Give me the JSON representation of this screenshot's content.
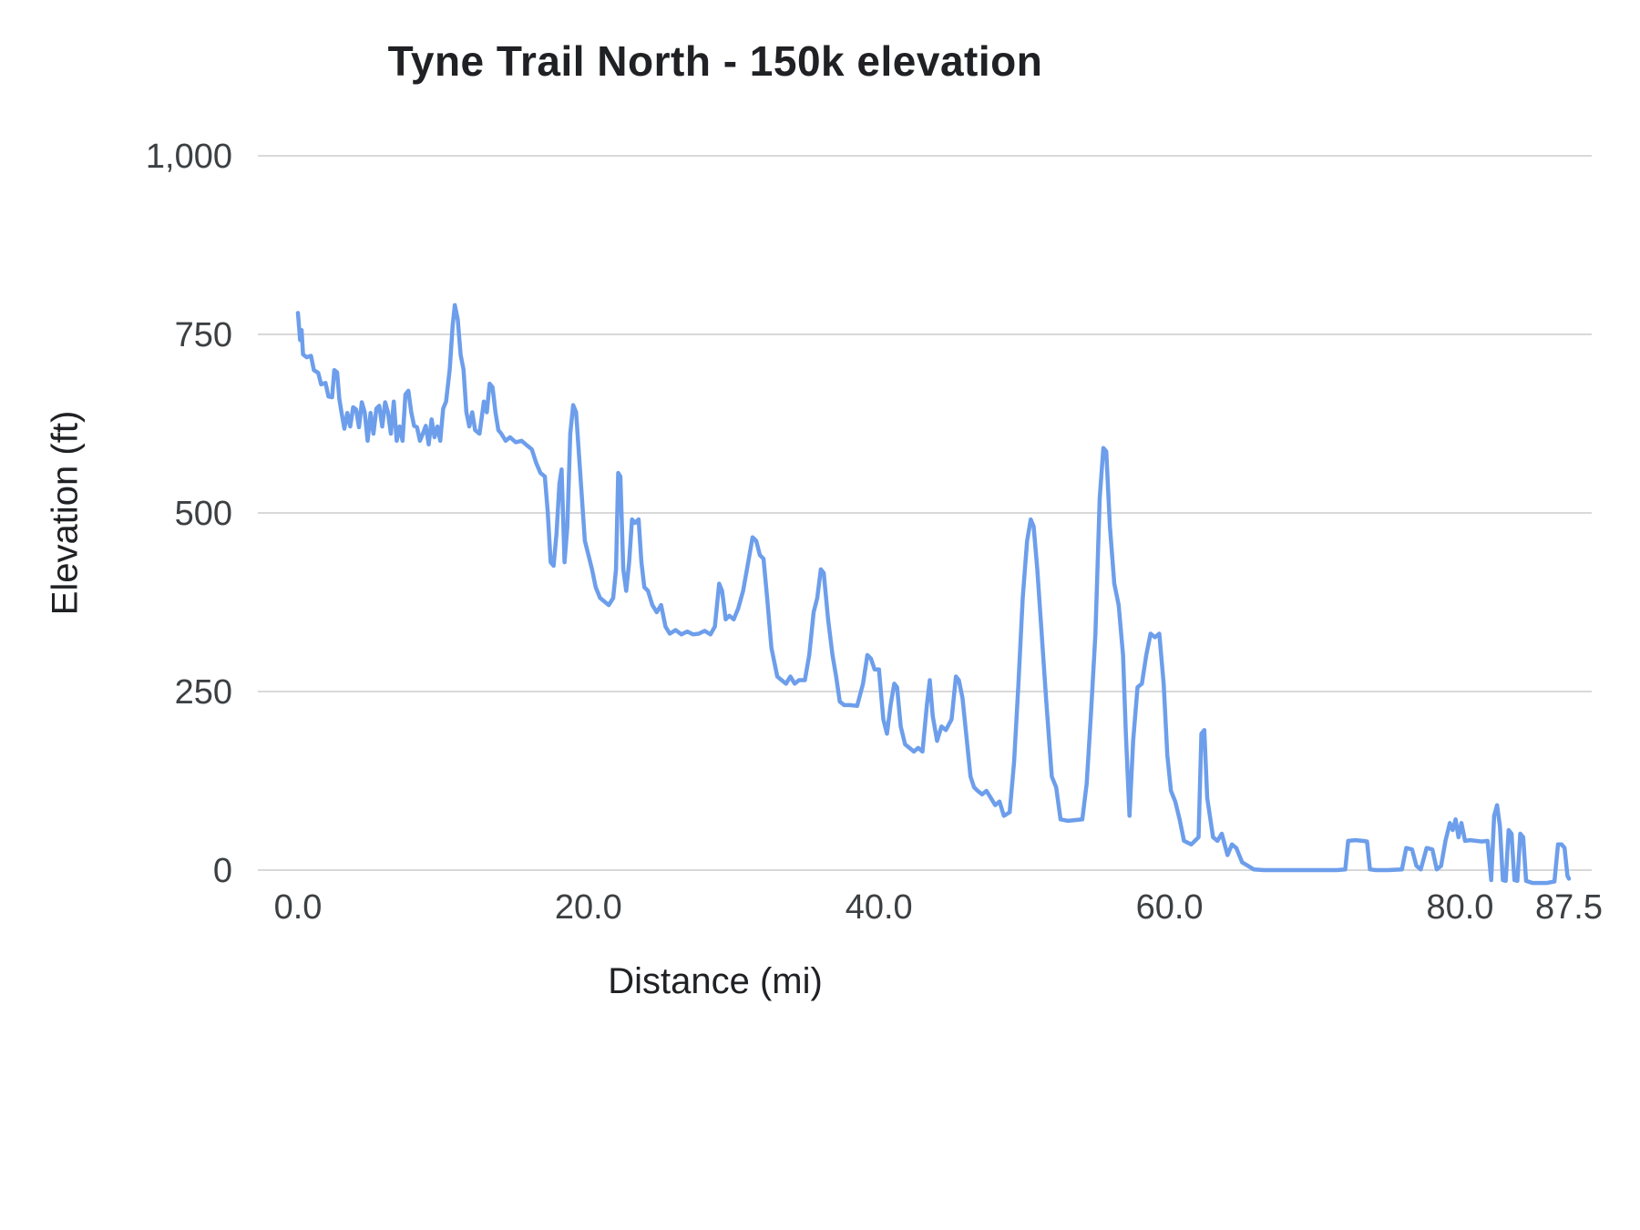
{
  "colors": {
    "line": "#6d9eeb",
    "grid": "#d9d9d9",
    "tick_text": "#3c4043",
    "title_text": "#202124",
    "background": "#ffffff"
  },
  "chart_data": {
    "type": "line",
    "title": "Tyne Trail North - 150k elevation",
    "xlabel": "Distance (mi)",
    "ylabel": "Elevation (ft)",
    "xlim": [
      0,
      87.5
    ],
    "ylim": [
      0,
      1000
    ],
    "grid": "horizontal",
    "legend": "none",
    "x_ticks": {
      "values": [
        0,
        20,
        40,
        60,
        80,
        87.5
      ],
      "labels": [
        "0.0",
        "20.0",
        "40.0",
        "60.0",
        "80.0",
        "87.5"
      ]
    },
    "y_ticks": {
      "values": [
        0,
        250,
        500,
        750,
        1000
      ],
      "labels": [
        "0",
        "250",
        "500",
        "750",
        "1,000"
      ]
    },
    "series": [
      {
        "name": "Elevation",
        "points": [
          [
            0,
            780
          ],
          [
            0.15,
            742
          ],
          [
            0.25,
            756
          ],
          [
            0.35,
            722
          ],
          [
            0.6,
            718
          ],
          [
            0.9,
            720
          ],
          [
            1.1,
            700
          ],
          [
            1.4,
            696
          ],
          [
            1.6,
            680
          ],
          [
            1.9,
            682
          ],
          [
            2.1,
            663
          ],
          [
            2.35,
            662
          ],
          [
            2.5,
            700
          ],
          [
            2.7,
            697
          ],
          [
            2.85,
            660
          ],
          [
            3,
            641
          ],
          [
            3.2,
            618
          ],
          [
            3.4,
            640
          ],
          [
            3.6,
            621
          ],
          [
            3.8,
            648
          ],
          [
            4,
            645
          ],
          [
            4.2,
            620
          ],
          [
            4.4,
            655
          ],
          [
            4.6,
            641
          ],
          [
            4.8,
            601
          ],
          [
            5,
            640
          ],
          [
            5.2,
            611
          ],
          [
            5.4,
            646
          ],
          [
            5.6,
            650
          ],
          [
            5.8,
            621
          ],
          [
            6,
            655
          ],
          [
            6.2,
            641
          ],
          [
            6.4,
            611
          ],
          [
            6.6,
            656
          ],
          [
            6.8,
            601
          ],
          [
            7,
            621
          ],
          [
            7.2,
            601
          ],
          [
            7.4,
            666
          ],
          [
            7.6,
            671
          ],
          [
            7.8,
            641
          ],
          [
            8,
            622
          ],
          [
            8.2,
            620
          ],
          [
            8.4,
            601
          ],
          [
            8.6,
            611
          ],
          [
            8.8,
            622
          ],
          [
            9,
            596
          ],
          [
            9.2,
            631
          ],
          [
            9.4,
            606
          ],
          [
            9.6,
            621
          ],
          [
            9.8,
            601
          ],
          [
            10,
            646
          ],
          [
            10.2,
            656
          ],
          [
            10.45,
            701
          ],
          [
            10.65,
            762
          ],
          [
            10.8,
            791
          ],
          [
            11,
            771
          ],
          [
            11.2,
            721
          ],
          [
            11.4,
            701
          ],
          [
            11.6,
            641
          ],
          [
            11.8,
            621
          ],
          [
            12,
            641
          ],
          [
            12.2,
            616
          ],
          [
            12.5,
            611
          ],
          [
            12.8,
            656
          ],
          [
            13,
            641
          ],
          [
            13.2,
            681
          ],
          [
            13.4,
            676
          ],
          [
            13.6,
            641
          ],
          [
            13.8,
            616
          ],
          [
            14,
            611
          ],
          [
            14.3,
            601
          ],
          [
            14.6,
            606
          ],
          [
            15,
            599
          ],
          [
            15.4,
            601
          ],
          [
            15.8,
            594
          ],
          [
            16.1,
            589
          ],
          [
            16.4,
            570
          ],
          [
            16.7,
            556
          ],
          [
            17,
            551
          ],
          [
            17.2,
            501
          ],
          [
            17.4,
            431
          ],
          [
            17.6,
            426
          ],
          [
            17.8,
            471
          ],
          [
            18,
            541
          ],
          [
            18.15,
            561
          ],
          [
            18.35,
            431
          ],
          [
            18.55,
            481
          ],
          [
            18.75,
            611
          ],
          [
            18.95,
            651
          ],
          [
            19.15,
            641
          ],
          [
            19.35,
            581
          ],
          [
            19.55,
            521
          ],
          [
            19.75,
            461
          ],
          [
            20,
            441
          ],
          [
            20.25,
            421
          ],
          [
            20.5,
            396
          ],
          [
            20.8,
            381
          ],
          [
            21.1,
            376
          ],
          [
            21.4,
            371
          ],
          [
            21.7,
            381
          ],
          [
            21.9,
            421
          ],
          [
            22.05,
            556
          ],
          [
            22.2,
            551
          ],
          [
            22.4,
            421
          ],
          [
            22.6,
            391
          ],
          [
            22.8,
            431
          ],
          [
            23,
            491
          ],
          [
            23.2,
            486
          ],
          [
            23.45,
            491
          ],
          [
            23.65,
            431
          ],
          [
            23.85,
            396
          ],
          [
            24.1,
            391
          ],
          [
            24.4,
            371
          ],
          [
            24.7,
            361
          ],
          [
            25,
            371
          ],
          [
            25.3,
            341
          ],
          [
            25.6,
            331
          ],
          [
            26,
            336
          ],
          [
            26.4,
            330
          ],
          [
            26.8,
            334
          ],
          [
            27.2,
            330
          ],
          [
            27.6,
            331
          ],
          [
            28,
            335
          ],
          [
            28.4,
            330
          ],
          [
            28.7,
            341
          ],
          [
            29,
            401
          ],
          [
            29.2,
            391
          ],
          [
            29.45,
            351
          ],
          [
            29.7,
            356
          ],
          [
            30,
            351
          ],
          [
            30.3,
            366
          ],
          [
            30.65,
            391
          ],
          [
            31,
            431
          ],
          [
            31.3,
            466
          ],
          [
            31.55,
            461
          ],
          [
            31.8,
            441
          ],
          [
            32.05,
            436
          ],
          [
            32.3,
            381
          ],
          [
            32.6,
            311
          ],
          [
            33,
            271
          ],
          [
            33.3,
            266
          ],
          [
            33.6,
            261
          ],
          [
            33.9,
            271
          ],
          [
            34.2,
            261
          ],
          [
            34.5,
            266
          ],
          [
            34.9,
            266
          ],
          [
            35.2,
            301
          ],
          [
            35.5,
            361
          ],
          [
            35.75,
            381
          ],
          [
            36,
            421
          ],
          [
            36.2,
            416
          ],
          [
            36.5,
            351
          ],
          [
            36.8,
            301
          ],
          [
            37.05,
            271
          ],
          [
            37.3,
            236
          ],
          [
            37.6,
            231
          ],
          [
            38,
            231
          ],
          [
            38.5,
            230
          ],
          [
            38.9,
            261
          ],
          [
            39.2,
            301
          ],
          [
            39.45,
            296
          ],
          [
            39.7,
            281
          ],
          [
            40,
            281
          ],
          [
            40.3,
            211
          ],
          [
            40.55,
            191
          ],
          [
            40.8,
            231
          ],
          [
            41.05,
            261
          ],
          [
            41.25,
            256
          ],
          [
            41.5,
            201
          ],
          [
            41.8,
            176
          ],
          [
            42.1,
            171
          ],
          [
            42.4,
            166
          ],
          [
            42.7,
            171
          ],
          [
            43,
            166
          ],
          [
            43.3,
            231
          ],
          [
            43.5,
            266
          ],
          [
            43.7,
            216
          ],
          [
            44,
            181
          ],
          [
            44.3,
            201
          ],
          [
            44.6,
            196
          ],
          [
            45,
            211
          ],
          [
            45.3,
            271
          ],
          [
            45.5,
            266
          ],
          [
            45.75,
            241
          ],
          [
            46,
            191
          ],
          [
            46.3,
            131
          ],
          [
            46.55,
            116
          ],
          [
            46.8,
            111
          ],
          [
            47.1,
            106
          ],
          [
            47.4,
            111
          ],
          [
            47.7,
            101
          ],
          [
            48,
            91
          ],
          [
            48.3,
            96
          ],
          [
            48.6,
            76
          ],
          [
            49,
            81
          ],
          [
            49.3,
            151
          ],
          [
            49.6,
            261
          ],
          [
            49.9,
            381
          ],
          [
            50.2,
            461
          ],
          [
            50.45,
            491
          ],
          [
            50.65,
            481
          ],
          [
            50.9,
            421
          ],
          [
            51.2,
            331
          ],
          [
            51.5,
            241
          ],
          [
            51.9,
            131
          ],
          [
            52.2,
            116
          ],
          [
            52.5,
            71
          ],
          [
            53,
            69
          ],
          [
            53.5,
            70
          ],
          [
            54,
            71
          ],
          [
            54.3,
            121
          ],
          [
            54.6,
            221
          ],
          [
            54.9,
            331
          ],
          [
            55.2,
            521
          ],
          [
            55.45,
            591
          ],
          [
            55.65,
            586
          ],
          [
            55.9,
            481
          ],
          [
            56.2,
            401
          ],
          [
            56.5,
            371
          ],
          [
            56.8,
            301
          ],
          [
            57,
            191
          ],
          [
            57.25,
            76
          ],
          [
            57.5,
            181
          ],
          [
            57.8,
            256
          ],
          [
            58.1,
            261
          ],
          [
            58.4,
            301
          ],
          [
            58.7,
            331
          ],
          [
            59,
            326
          ],
          [
            59.3,
            331
          ],
          [
            59.6,
            261
          ],
          [
            59.85,
            161
          ],
          [
            60.1,
            111
          ],
          [
            60.4,
            96
          ],
          [
            60.7,
            71
          ],
          [
            61,
            41
          ],
          [
            61.5,
            36
          ],
          [
            62,
            46
          ],
          [
            62.2,
            191
          ],
          [
            62.4,
            196
          ],
          [
            62.6,
            101
          ],
          [
            63,
            46
          ],
          [
            63.3,
            41
          ],
          [
            63.6,
            51
          ],
          [
            64,
            21
          ],
          [
            64.3,
            36
          ],
          [
            64.6,
            31
          ],
          [
            65,
            11
          ],
          [
            65.4,
            6
          ],
          [
            65.8,
            1
          ],
          [
            66.5,
            0
          ],
          [
            67.5,
            0
          ],
          [
            68.5,
            0
          ],
          [
            69.5,
            0
          ],
          [
            70.5,
            0
          ],
          [
            71.5,
            0
          ],
          [
            72.1,
            1
          ],
          [
            72.3,
            41
          ],
          [
            72.8,
            42
          ],
          [
            73.3,
            41
          ],
          [
            73.6,
            40
          ],
          [
            73.8,
            1
          ],
          [
            74.2,
            0
          ],
          [
            75,
            0
          ],
          [
            76,
            1
          ],
          [
            76.3,
            31
          ],
          [
            76.7,
            29
          ],
          [
            77,
            6
          ],
          [
            77.3,
            1
          ],
          [
            77.7,
            31
          ],
          [
            78.1,
            29
          ],
          [
            78.4,
            1
          ],
          [
            78.7,
            6
          ],
          [
            79,
            41
          ],
          [
            79.3,
            66
          ],
          [
            79.5,
            56
          ],
          [
            79.7,
            71
          ],
          [
            79.9,
            46
          ],
          [
            80.1,
            66
          ],
          [
            80.35,
            41
          ],
          [
            80.7,
            42
          ],
          [
            81.1,
            41
          ],
          [
            81.5,
            40
          ],
          [
            81.9,
            41
          ],
          [
            82.15,
            -14
          ],
          [
            82.35,
            76
          ],
          [
            82.55,
            91
          ],
          [
            82.75,
            61
          ],
          [
            82.95,
            -14
          ],
          [
            83.15,
            -15
          ],
          [
            83.35,
            56
          ],
          [
            83.55,
            51
          ],
          [
            83.75,
            -14
          ],
          [
            83.95,
            -15
          ],
          [
            84.15,
            51
          ],
          [
            84.35,
            46
          ],
          [
            84.55,
            -15
          ],
          [
            85,
            -18
          ],
          [
            85.5,
            -18
          ],
          [
            86,
            -18
          ],
          [
            86.5,
            -16
          ],
          [
            86.75,
            36
          ],
          [
            87,
            36
          ],
          [
            87.2,
            31
          ],
          [
            87.4,
            -8
          ],
          [
            87.5,
            -12
          ]
        ]
      }
    ]
  }
}
